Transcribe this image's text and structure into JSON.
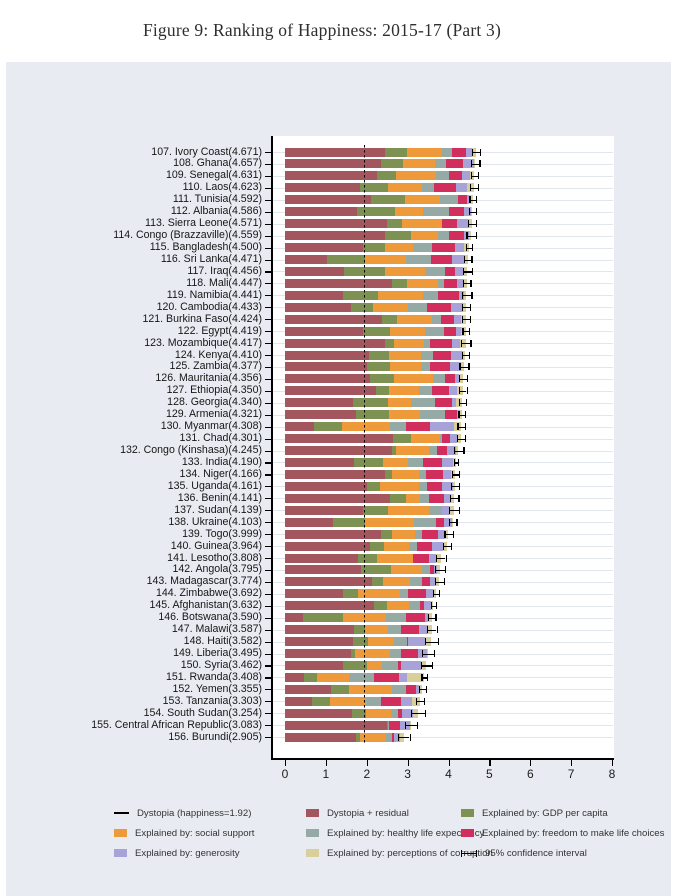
{
  "title": "Figure 9: Ranking of Happiness: 2015-17 (Part 3)",
  "chart_data": {
    "type": "bar",
    "orientation": "horizontal",
    "title": "Figure 9: Ranking of Happiness: 2015-17 (Part 3)",
    "xlabel": "",
    "ylabel": "",
    "xlim": [
      0,
      8
    ],
    "x_ticks": [
      0,
      1,
      2,
      3,
      4,
      5,
      6,
      7,
      8
    ],
    "grid": "per-category-light",
    "dystopia_line_value": 1.92,
    "segment_keys": [
      "dystopia_residual",
      "gdp",
      "social_support",
      "healthy_life_expectancy",
      "freedom",
      "generosity",
      "corruption"
    ],
    "segment_colors": {
      "dystopia_residual": "#a4565e",
      "gdp": "#7d9153",
      "social_support": "#ef9a3a",
      "healthy_life_expectancy": "#95aaa4",
      "freedom": "#d12e5e",
      "generosity": "#a7a3d9",
      "corruption": "#d9cf9a"
    },
    "countries": [
      {
        "rank": 107,
        "name": "Ivory Coast",
        "score": 4.671,
        "dystopia_residual": 2.441,
        "gdp": 0.54,
        "social_support": 0.87,
        "healthy_life_expectancy": 0.23,
        "freedom": 0.35,
        "generosity": 0.15,
        "corruption": 0.09,
        "ci": 0.1
      },
      {
        "rank": 108,
        "name": "Ghana",
        "score": 4.657,
        "dystopia_residual": 2.337,
        "gdp": 0.55,
        "social_support": 0.79,
        "healthy_life_expectancy": 0.27,
        "freedom": 0.42,
        "generosity": 0.26,
        "corruption": 0.03,
        "ci": 0.1
      },
      {
        "rank": 109,
        "name": "Senegal",
        "score": 4.631,
        "dystopia_residual": 2.241,
        "gdp": 0.48,
        "social_support": 0.98,
        "healthy_life_expectancy": 0.31,
        "freedom": 0.33,
        "generosity": 0.19,
        "corruption": 0.1,
        "ci": 0.09
      },
      {
        "rank": 110,
        "name": "Laos",
        "score": 4.623,
        "dystopia_residual": 1.833,
        "gdp": 0.69,
        "social_support": 0.83,
        "healthy_life_expectancy": 0.3,
        "freedom": 0.53,
        "generosity": 0.27,
        "corruption": 0.17,
        "ci": 0.1
      },
      {
        "rank": 111,
        "name": "Tunisia",
        "score": 4.592,
        "dystopia_residual": 2.092,
        "gdp": 0.84,
        "social_support": 0.85,
        "healthy_life_expectancy": 0.44,
        "freedom": 0.23,
        "generosity": 0.06,
        "corruption": 0.08,
        "ci": 0.08
      },
      {
        "rank": 112,
        "name": "Albania",
        "score": 4.586,
        "dystopia_residual": 1.766,
        "gdp": 0.92,
        "social_support": 0.68,
        "healthy_life_expectancy": 0.64,
        "freedom": 0.38,
        "generosity": 0.17,
        "corruption": 0.03,
        "ci": 0.09
      },
      {
        "rank": 113,
        "name": "Sierra Leone",
        "score": 4.571,
        "dystopia_residual": 2.491,
        "gdp": 0.37,
        "social_support": 0.98,
        "healthy_life_expectancy": 0.01,
        "freedom": 0.36,
        "generosity": 0.29,
        "corruption": 0.07,
        "ci": 0.1
      },
      {
        "rank": 114,
        "name": "Congo (Brazzaville)",
        "score": 4.559,
        "dystopia_residual": 2.439,
        "gdp": 0.64,
        "social_support": 0.66,
        "healthy_life_expectancy": 0.28,
        "freedom": 0.37,
        "generosity": 0.11,
        "corruption": 0.06,
        "ci": 0.12
      },
      {
        "rank": 115,
        "name": "Bangladesh",
        "score": 4.5,
        "dystopia_residual": 1.9,
        "gdp": 0.54,
        "social_support": 0.69,
        "healthy_life_expectancy": 0.46,
        "freedom": 0.56,
        "generosity": 0.23,
        "corruption": 0.12,
        "ci": 0.07
      },
      {
        "rank": 116,
        "name": "Sri Lanka",
        "score": 4.471,
        "dystopia_residual": 1.031,
        "gdp": 0.92,
        "social_support": 1.02,
        "healthy_life_expectancy": 0.6,
        "freedom": 0.52,
        "generosity": 0.32,
        "corruption": 0.06,
        "ci": 0.09
      },
      {
        "rank": 117,
        "name": "Iraq",
        "score": 4.456,
        "dystopia_residual": 1.446,
        "gdp": 1.01,
        "social_support": 0.97,
        "healthy_life_expectancy": 0.5,
        "freedom": 0.24,
        "generosity": 0.19,
        "corruption": 0.1,
        "ci": 0.11
      },
      {
        "rank": 118,
        "name": "Mali",
        "score": 4.447,
        "dystopia_residual": 2.607,
        "gdp": 0.39,
        "social_support": 0.74,
        "healthy_life_expectancy": 0.15,
        "freedom": 0.33,
        "generosity": 0.17,
        "corruption": 0.06,
        "ci": 0.09
      },
      {
        "rank": 119,
        "name": "Namibia",
        "score": 4.441,
        "dystopia_residual": 1.411,
        "gdp": 0.87,
        "social_support": 1.1,
        "healthy_life_expectancy": 0.36,
        "freedom": 0.52,
        "generosity": 0.11,
        "corruption": 0.07,
        "ci": 0.12
      },
      {
        "rank": 120,
        "name": "Cambodia",
        "score": 4.433,
        "dystopia_residual": 1.603,
        "gdp": 0.55,
        "social_support": 0.85,
        "healthy_life_expectancy": 0.46,
        "freedom": 0.61,
        "generosity": 0.29,
        "corruption": 0.07,
        "ci": 0.1
      },
      {
        "rank": 121,
        "name": "Burkina Faso",
        "score": 4.424,
        "dystopia_residual": 2.364,
        "gdp": 0.37,
        "social_support": 0.87,
        "healthy_life_expectancy": 0.22,
        "freedom": 0.3,
        "generosity": 0.18,
        "corruption": 0.12,
        "ci": 0.09
      },
      {
        "rank": 122,
        "name": "Egypt",
        "score": 4.419,
        "dystopia_residual": 1.899,
        "gdp": 0.68,
        "social_support": 0.84,
        "healthy_life_expectancy": 0.46,
        "freedom": 0.31,
        "generosity": 0.13,
        "corruption": 0.1,
        "ci": 0.08
      },
      {
        "rank": 123,
        "name": "Mozambique",
        "score": 4.417,
        "dystopia_residual": 2.437,
        "gdp": 0.23,
        "social_support": 0.74,
        "healthy_life_expectancy": 0.13,
        "freedom": 0.54,
        "generosity": 0.2,
        "corruption": 0.14,
        "ci": 0.12
      },
      {
        "rank": 124,
        "name": "Kenya",
        "score": 4.41,
        "dystopia_residual": 2.05,
        "gdp": 0.49,
        "social_support": 0.78,
        "healthy_life_expectancy": 0.29,
        "freedom": 0.45,
        "generosity": 0.29,
        "corruption": 0.06,
        "ci": 0.08
      },
      {
        "rank": 125,
        "name": "Zambia",
        "score": 4.377,
        "dystopia_residual": 1.997,
        "gdp": 0.56,
        "social_support": 0.78,
        "healthy_life_expectancy": 0.21,
        "freedom": 0.5,
        "generosity": 0.25,
        "corruption": 0.08,
        "ci": 0.11
      },
      {
        "rank": 126,
        "name": "Mauritania",
        "score": 4.356,
        "dystopia_residual": 2.086,
        "gdp": 0.57,
        "social_support": 0.96,
        "healthy_life_expectancy": 0.29,
        "freedom": 0.25,
        "generosity": 0.11,
        "corruption": 0.09,
        "ci": 0.1
      },
      {
        "rank": 127,
        "name": "Ethiopia",
        "score": 4.35,
        "dystopia_residual": 2.23,
        "gdp": 0.31,
        "social_support": 0.75,
        "healthy_life_expectancy": 0.3,
        "freedom": 0.42,
        "generosity": 0.2,
        "corruption": 0.14,
        "ci": 0.09
      },
      {
        "rank": 128,
        "name": "Georgia",
        "score": 4.34,
        "dystopia_residual": 1.67,
        "gdp": 0.85,
        "social_support": 0.57,
        "healthy_life_expectancy": 0.58,
        "freedom": 0.42,
        "generosity": 0.09,
        "corruption": 0.16,
        "ci": 0.09
      },
      {
        "rank": 129,
        "name": "Armenia",
        "score": 4.321,
        "dystopia_residual": 1.731,
        "gdp": 0.82,
        "social_support": 0.75,
        "healthy_life_expectancy": 0.62,
        "freedom": 0.29,
        "generosity": 0.08,
        "corruption": 0.03,
        "ci": 0.08
      },
      {
        "rank": 130,
        "name": "Myanmar",
        "score": 4.308,
        "dystopia_residual": 0.708,
        "gdp": 0.68,
        "social_support": 1.17,
        "healthy_life_expectancy": 0.4,
        "freedom": 0.58,
        "generosity": 0.6,
        "corruption": 0.17,
        "ci": 0.09
      },
      {
        "rank": 131,
        "name": "Chad",
        "score": 4.301,
        "dystopia_residual": 2.641,
        "gdp": 0.44,
        "social_support": 0.72,
        "healthy_life_expectancy": 0.05,
        "freedom": 0.18,
        "generosity": 0.18,
        "corruption": 0.09,
        "ci": 0.1
      },
      {
        "rank": 132,
        "name": "Congo (Kinshasa)",
        "score": 4.245,
        "dystopia_residual": 2.615,
        "gdp": 0.09,
        "social_support": 0.81,
        "healthy_life_expectancy": 0.2,
        "freedom": 0.26,
        "generosity": 0.22,
        "corruption": 0.05,
        "ci": 0.12
      },
      {
        "rank": 133,
        "name": "India",
        "score": 4.19,
        "dystopia_residual": 1.68,
        "gdp": 0.72,
        "social_support": 0.6,
        "healthy_life_expectancy": 0.37,
        "freedom": 0.48,
        "generosity": 0.26,
        "corruption": 0.08,
        "ci": 0.05
      },
      {
        "rank": 134,
        "name": "Niger",
        "score": 4.166,
        "dystopia_residual": 2.456,
        "gdp": 0.16,
        "social_support": 0.67,
        "healthy_life_expectancy": 0.17,
        "freedom": 0.42,
        "generosity": 0.19,
        "corruption": 0.1,
        "ci": 0.09
      },
      {
        "rank": 135,
        "name": "Uganda",
        "score": 4.161,
        "dystopia_residual": 2.011,
        "gdp": 0.32,
        "social_support": 0.94,
        "healthy_life_expectancy": 0.21,
        "freedom": 0.36,
        "generosity": 0.26,
        "corruption": 0.06,
        "ci": 0.1
      },
      {
        "rank": 136,
        "name": "Benin",
        "score": 4.141,
        "dystopia_residual": 2.571,
        "gdp": 0.39,
        "social_support": 0.35,
        "healthy_life_expectancy": 0.22,
        "freedom": 0.35,
        "generosity": 0.18,
        "corruption": 0.08,
        "ci": 0.1
      },
      {
        "rank": 137,
        "name": "Sudan",
        "score": 4.139,
        "dystopia_residual": 1.919,
        "gdp": 0.6,
        "social_support": 1.01,
        "healthy_life_expectancy": 0.31,
        "freedom": 0.01,
        "generosity": 0.19,
        "corruption": 0.1,
        "ci": 0.12
      },
      {
        "rank": 138,
        "name": "Ukraine",
        "score": 4.103,
        "dystopia_residual": 1.163,
        "gdp": 0.79,
        "social_support": 1.2,
        "healthy_life_expectancy": 0.55,
        "freedom": 0.18,
        "generosity": 0.21,
        "corruption": 0.01,
        "ci": 0.09
      },
      {
        "rank": 139,
        "name": "Togo",
        "score": 3.999,
        "dystopia_residual": 2.349,
        "gdp": 0.26,
        "social_support": 0.57,
        "healthy_life_expectancy": 0.17,
        "freedom": 0.39,
        "generosity": 0.17,
        "corruption": 0.09,
        "ci": 0.1
      },
      {
        "rank": 140,
        "name": "Guinea",
        "score": 3.964,
        "dystopia_residual": 2.074,
        "gdp": 0.34,
        "social_support": 0.63,
        "healthy_life_expectancy": 0.18,
        "freedom": 0.38,
        "generosity": 0.25,
        "corruption": 0.11,
        "ci": 0.1
      },
      {
        "rank": 141,
        "name": "Lesotho",
        "score": 3.808,
        "dystopia_residual": 1.788,
        "gdp": 0.47,
        "social_support": 0.87,
        "healthy_life_expectancy": 0.01,
        "freedom": 0.39,
        "generosity": 0.16,
        "corruption": 0.12,
        "ci": 0.12
      },
      {
        "rank": 142,
        "name": "Angola",
        "score": 3.795,
        "dystopia_residual": 1.865,
        "gdp": 0.73,
        "social_support": 0.76,
        "healthy_life_expectancy": 0.19,
        "freedom": 0.1,
        "generosity": 0.08,
        "corruption": 0.07,
        "ci": 0.12
      },
      {
        "rank": 143,
        "name": "Madagascar",
        "score": 3.774,
        "dystopia_residual": 2.134,
        "gdp": 0.26,
        "social_support": 0.67,
        "healthy_life_expectancy": 0.3,
        "freedom": 0.19,
        "generosity": 0.15,
        "corruption": 0.07,
        "ci": 0.11
      },
      {
        "rank": 144,
        "name": "Zimbabwe",
        "score": 3.692,
        "dystopia_residual": 1.422,
        "gdp": 0.36,
        "social_support": 1.04,
        "healthy_life_expectancy": 0.2,
        "freedom": 0.43,
        "generosity": 0.16,
        "corruption": 0.08,
        "ci": 0.08
      },
      {
        "rank": 145,
        "name": "Afghanistan",
        "score": 3.632,
        "dystopia_residual": 2.172,
        "gdp": 0.33,
        "social_support": 0.54,
        "healthy_life_expectancy": 0.26,
        "freedom": 0.09,
        "generosity": 0.19,
        "corruption": 0.05,
        "ci": 0.07
      },
      {
        "rank": 146,
        "name": "Botswana",
        "score": 3.59,
        "dystopia_residual": 0.44,
        "gdp": 0.99,
        "social_support": 1.04,
        "healthy_life_expectancy": 0.49,
        "freedom": 0.46,
        "generosity": 0.07,
        "corruption": 0.1,
        "ci": 0.09
      },
      {
        "rank": 147,
        "name": "Malawi",
        "score": 3.587,
        "dystopia_residual": 1.677,
        "gdp": 0.29,
        "social_support": 0.56,
        "healthy_life_expectancy": 0.3,
        "freedom": 0.46,
        "generosity": 0.21,
        "corruption": 0.09,
        "ci": 0.12
      },
      {
        "rank": 148,
        "name": "Haiti",
        "score": 3.582,
        "dystopia_residual": 1.662,
        "gdp": 0.37,
        "social_support": 0.64,
        "healthy_life_expectancy": 0.31,
        "freedom": 0.03,
        "generosity": 0.42,
        "corruption": 0.15,
        "ci": 0.15
      },
      {
        "rank": 149,
        "name": "Liberia",
        "score": 3.495,
        "dystopia_residual": 1.625,
        "gdp": 0.08,
        "social_support": 0.86,
        "healthy_life_expectancy": 0.27,
        "freedom": 0.42,
        "generosity": 0.21,
        "corruption": 0.03,
        "ci": 0.15
      },
      {
        "rank": 150,
        "name": "Syria",
        "score": 3.462,
        "dystopia_residual": 1.412,
        "gdp": 0.59,
        "social_support": 0.38,
        "healthy_life_expectancy": 0.39,
        "freedom": 0.06,
        "generosity": 0.49,
        "corruption": 0.14,
        "ci": 0.13
      },
      {
        "rank": 151,
        "name": "Rwanda",
        "score": 3.408,
        "dystopia_residual": 0.458,
        "gdp": 0.33,
        "social_support": 0.77,
        "healthy_life_expectancy": 0.61,
        "freedom": 0.61,
        "generosity": 0.2,
        "corruption": 0.43,
        "ci": 0.07
      },
      {
        "rank": 152,
        "name": "Yemen",
        "score": 3.355,
        "dystopia_residual": 1.115,
        "gdp": 0.44,
        "social_support": 1.07,
        "healthy_life_expectancy": 0.34,
        "freedom": 0.24,
        "generosity": 0.08,
        "corruption": 0.07,
        "ci": 0.09
      },
      {
        "rank": 153,
        "name": "Tanzania",
        "score": 3.303,
        "dystopia_residual": 0.663,
        "gdp": 0.45,
        "social_support": 0.88,
        "healthy_life_expectancy": 0.36,
        "freedom": 0.48,
        "generosity": 0.27,
        "corruption": 0.2,
        "ci": 0.09
      },
      {
        "rank": 154,
        "name": "South Sudan",
        "score": 3.254,
        "dystopia_residual": 1.644,
        "gdp": 0.34,
        "social_support": 0.6,
        "healthy_life_expectancy": 0.18,
        "freedom": 0.1,
        "generosity": 0.26,
        "corruption": 0.13,
        "ci": 0.17
      },
      {
        "rank": 155,
        "name": "Central African Republic",
        "score": 3.083,
        "dystopia_residual": 2.503,
        "gdp": 0.02,
        "social_support": 0.0,
        "healthy_life_expectancy": 0.01,
        "freedom": 0.29,
        "generosity": 0.23,
        "corruption": 0.03,
        "ci": 0.15
      },
      {
        "rank": 156,
        "name": "Burundi",
        "score": 2.905,
        "dystopia_residual": 1.745,
        "gdp": 0.09,
        "social_support": 0.63,
        "healthy_life_expectancy": 0.15,
        "freedom": 0.06,
        "generosity": 0.15,
        "corruption": 0.08,
        "ci": 0.14
      }
    ]
  },
  "legend": {
    "items": [
      {
        "col": 0,
        "row": 0,
        "symbol": "line",
        "label": "Dystopia (happiness=1.92)"
      },
      {
        "col": 1,
        "row": 0,
        "symbol": "swatch",
        "key": "dystopia_residual",
        "label": "Dystopia + residual"
      },
      {
        "col": 2,
        "row": 0,
        "symbol": "swatch",
        "key": "gdp",
        "label": "Explained by: GDP per capita"
      },
      {
        "col": 0,
        "row": 1,
        "symbol": "swatch",
        "key": "social_support",
        "label": "Explained by: social support"
      },
      {
        "col": 1,
        "row": 1,
        "symbol": "swatch",
        "key": "healthy_life_expectancy",
        "label": "Explained by: healthy life expectancy"
      },
      {
        "col": 2,
        "row": 1,
        "symbol": "swatch",
        "key": "freedom",
        "label": "Explained by: freedom to make life choices"
      },
      {
        "col": 0,
        "row": 2,
        "symbol": "swatch",
        "key": "generosity",
        "label": "Explained by: generosity"
      },
      {
        "col": 1,
        "row": 2,
        "symbol": "swatch",
        "key": "corruption",
        "label": "Explained by: perceptions of corruption"
      },
      {
        "col": 2,
        "row": 2,
        "symbol": "ci",
        "label": "95% confidence interval"
      }
    ]
  }
}
